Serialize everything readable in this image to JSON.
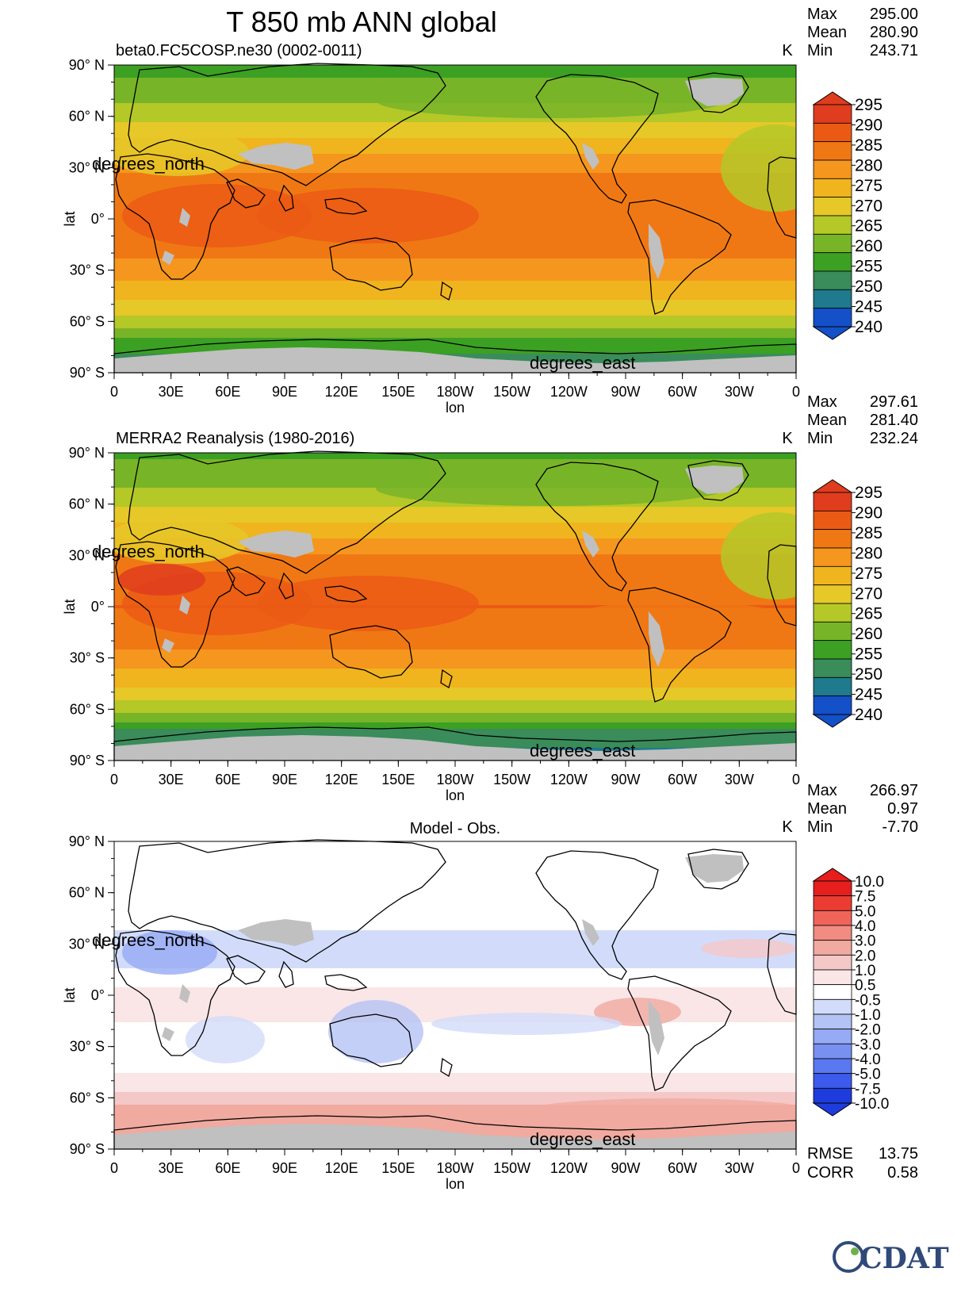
{
  "title": "T 850 mb ANN global",
  "colors": {
    "land_mask": "#c0c0c0",
    "coast": "#000000",
    "temp_levels": [
      "#1450c8",
      "#1e7a8c",
      "#3a8c5a",
      "#3ca023",
      "#78b428",
      "#b4c828",
      "#e6c828",
      "#f0b41e",
      "#f5961e",
      "#f07814",
      "#eb5a14",
      "#e03c1e"
    ],
    "diff_levels": [
      "#1e3cdc",
      "#3c5aeb",
      "#5a78f0",
      "#7891f0",
      "#96aaf5",
      "#b4c3f5",
      "#d2dcfa",
      "#ffffff",
      "#fae6e6",
      "#f5c8c8",
      "#f0aaa0",
      "#f08c82",
      "#f0645a",
      "#eb3c32",
      "#e61e1e"
    ]
  },
  "panels": [
    {
      "id": "model",
      "subtitle": "beta0.FC5COSP.ne30 (0002-0011)",
      "units": "K",
      "stats": [
        {
          "label": "Max",
          "value": "295.00"
        },
        {
          "label": "Mean",
          "value": "280.90"
        },
        {
          "label": "Min",
          "value": "243.71"
        }
      ],
      "colorbar": [
        "295",
        "290",
        "285",
        "280",
        "275",
        "270",
        "265",
        "260",
        "255",
        "250",
        "245",
        "240"
      ]
    },
    {
      "id": "obs",
      "subtitle": "MERRA2 Reanalysis (1980-2016)",
      "units": "K",
      "stats": [
        {
          "label": "Max",
          "value": "297.61"
        },
        {
          "label": "Mean",
          "value": "281.40"
        },
        {
          "label": "Min",
          "value": "232.24"
        }
      ],
      "colorbar": [
        "295",
        "290",
        "285",
        "280",
        "275",
        "270",
        "265",
        "260",
        "255",
        "250",
        "245",
        "240"
      ]
    },
    {
      "id": "diff",
      "subtitle": "Model - Obs.",
      "units": "K",
      "stats": [
        {
          "label": "Max",
          "value": "266.97"
        },
        {
          "label": "Mean",
          "value": "0.97"
        },
        {
          "label": "Min",
          "value": "-7.70"
        }
      ],
      "colorbar": [
        "10.0",
        "7.5",
        "5.0",
        "4.0",
        "3.0",
        "2.0",
        "1.0",
        "0.5",
        "-0.5",
        "-1.0",
        "-2.0",
        "-3.0",
        "-4.0",
        "-5.0",
        "-7.5",
        "-10.0"
      ],
      "footer": [
        {
          "label": "RMSE",
          "value": "13.75"
        },
        {
          "label": "CORR",
          "value": "0.58"
        }
      ]
    }
  ],
  "axes": {
    "lat_ticks": [
      "90° N",
      "60° N",
      "30° N",
      "0°",
      "30° S",
      "60° S",
      "90° S"
    ],
    "lon_ticks": [
      "0",
      "30E",
      "60E",
      "90E",
      "120E",
      "150E",
      "180W",
      "150W",
      "120W",
      "90W",
      "60W",
      "30W",
      "0"
    ],
    "xlabel": "lon",
    "ylabel": "lat",
    "lat_overlay": "degrees_north",
    "lon_overlay": "degrees_east"
  },
  "logo": "CDAT",
  "chart_data": [
    {
      "type": "heatmap",
      "title": "beta0.FC5COSP.ne30 (0002-0011)",
      "variable": "T 850 mb ANN global",
      "units": "K",
      "xlabel": "lon",
      "ylabel": "lat",
      "xlim": [
        0,
        360
      ],
      "ylim": [
        -90,
        90
      ],
      "levels": [
        240,
        245,
        250,
        255,
        260,
        265,
        270,
        275,
        280,
        285,
        290,
        295
      ],
      "stats": {
        "max": 295.0,
        "mean": 280.9,
        "min": 243.71
      },
      "zonal_profile": {
        "lat": [
          90,
          75,
          60,
          45,
          30,
          15,
          0,
          -15,
          -30,
          -45,
          -60,
          -75,
          -90
        ],
        "T": [
          258,
          262,
          268,
          276,
          284,
          288,
          289,
          288,
          283,
          276,
          268,
          256,
          252
        ]
      }
    },
    {
      "type": "heatmap",
      "title": "MERRA2 Reanalysis (1980-2016)",
      "variable": "T 850 mb ANN global",
      "units": "K",
      "xlabel": "lon",
      "ylabel": "lat",
      "xlim": [
        0,
        360
      ],
      "ylim": [
        -90,
        90
      ],
      "levels": [
        240,
        245,
        250,
        255,
        260,
        265,
        270,
        275,
        280,
        285,
        290,
        295
      ],
      "stats": {
        "max": 297.61,
        "mean": 281.4,
        "min": 232.24
      },
      "zonal_profile": {
        "lat": [
          90,
          75,
          60,
          45,
          30,
          15,
          0,
          -15,
          -30,
          -45,
          -60,
          -75,
          -90
        ],
        "T": [
          259,
          263,
          269,
          277,
          285,
          289,
          290,
          289,
          283,
          276,
          267,
          252,
          248
        ]
      }
    },
    {
      "type": "heatmap",
      "title": "Model - Obs.",
      "variable": "T 850 mb ANN global",
      "units": "K",
      "xlabel": "lon",
      "ylabel": "lat",
      "xlim": [
        0,
        360
      ],
      "ylim": [
        -90,
        90
      ],
      "levels": [
        -10.0,
        -7.5,
        -5.0,
        -4.0,
        -3.0,
        -2.0,
        -1.0,
        -0.5,
        0.5,
        1.0,
        2.0,
        3.0,
        4.0,
        5.0,
        7.5,
        10.0
      ],
      "stats": {
        "max": 266.97,
        "mean": 0.97,
        "min": -7.7,
        "rmse": 13.75,
        "corr": 0.58
      },
      "zonal_profile": {
        "lat": [
          90,
          75,
          60,
          45,
          30,
          15,
          0,
          -15,
          -30,
          -45,
          -60,
          -75,
          -90
        ],
        "dT": [
          -0.5,
          -1.0,
          -0.5,
          -0.8,
          -1.2,
          -1.0,
          -0.3,
          -0.5,
          -1.0,
          -0.5,
          0.8,
          1.5,
          0.8
        ]
      }
    }
  ]
}
